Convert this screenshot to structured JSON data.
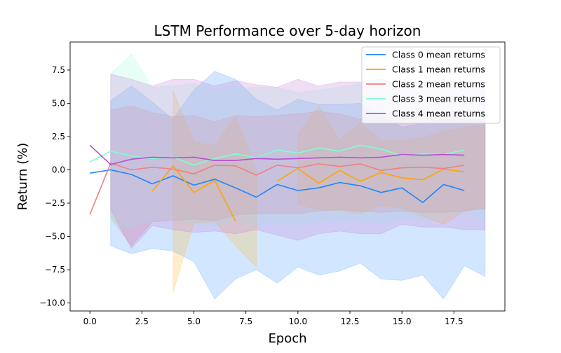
{
  "chart_data": {
    "type": "line",
    "title": "LSTM Performance over 5-day horizon",
    "xlabel": "Epoch",
    "ylabel": "Return (%)",
    "xlim": [
      -0.95,
      19.95
    ],
    "ylim": [
      -10.6,
      9.6
    ],
    "xticks": [
      0.0,
      2.5,
      5.0,
      7.5,
      10.0,
      12.5,
      15.0,
      17.5
    ],
    "xtick_labels": [
      "0.0",
      "2.5",
      "5.0",
      "7.5",
      "10.0",
      "12.5",
      "15.0",
      "17.5"
    ],
    "yticks": [
      -10.0,
      -7.5,
      -5.0,
      -2.5,
      0.0,
      2.5,
      5.0,
      7.5
    ],
    "ytick_labels": [
      "−10.0",
      "−7.5",
      "−5.0",
      "−2.5",
      "0.0",
      "2.5",
      "5.0",
      "7.5"
    ],
    "grid": false,
    "legend_position": "top-right",
    "series": [
      {
        "name": "Class 0 mean returns",
        "color": "#1f85ff",
        "fill_color": "#4d9fff",
        "x": [
          0,
          1,
          2,
          3,
          4,
          5,
          6,
          7,
          8,
          9,
          10,
          11,
          12,
          13,
          14,
          15,
          16,
          17,
          18
        ],
        "mean": [
          -0.25,
          0.0,
          -0.35,
          -1.05,
          -0.45,
          -1.15,
          -0.7,
          -1.35,
          -2.05,
          -1.1,
          -1.55,
          -1.35,
          -0.95,
          -1.2,
          -1.7,
          -1.35,
          -2.45,
          -1.1,
          -1.55
        ],
        "band_x": [
          1,
          2,
          3,
          4,
          5,
          6,
          7,
          8,
          9,
          10,
          11,
          12,
          13,
          14,
          15,
          16,
          17,
          18,
          19
        ],
        "band_lower": [
          -5.7,
          -6.3,
          -5.9,
          -6.1,
          -6.9,
          -9.7,
          -8.2,
          -7.5,
          -8.5,
          -7.3,
          -7.9,
          -7.6,
          -7.0,
          -8.2,
          -8.3,
          -7.9,
          -9.7,
          -7.2,
          -8.0
        ],
        "band_upper": [
          5.2,
          6.3,
          5.1,
          3.8,
          6.0,
          7.4,
          6.8,
          5.3,
          4.5,
          5.3,
          4.9,
          4.9,
          5.0,
          4.1,
          3.2,
          3.5,
          3.8,
          3.8,
          3.8
        ]
      },
      {
        "name": "Class 1 mean returns",
        "color": "#ffa500",
        "fill_color": "#ffb833",
        "x": [
          3,
          4,
          5,
          6,
          7,
          null,
          9,
          10,
          11,
          12,
          13,
          14,
          15,
          16,
          17,
          18
        ],
        "mean": [
          -1.6,
          0.3,
          -1.7,
          -0.8,
          -3.85,
          null,
          -0.85,
          0.1,
          -1.0,
          -0.05,
          -0.85,
          -0.2,
          -0.6,
          -0.75,
          0.05,
          -0.15
        ],
        "band_x": [
          4,
          5,
          6,
          7,
          8,
          null,
          10,
          11,
          12,
          13,
          14,
          15,
          16,
          17,
          18,
          19
        ],
        "band_lower": [
          -9.2,
          -4.0,
          -3.9,
          -5.7,
          -7.3,
          null,
          -2.6,
          -3.0,
          -3.1,
          -3.3,
          -2.7,
          -2.9,
          -3.5,
          -4.1,
          -3.1,
          -2.9
        ],
        "band_upper": [
          6.0,
          2.1,
          1.8,
          4.0,
          0.0,
          null,
          2.7,
          4.8,
          2.3,
          3.5,
          2.2,
          2.2,
          2.4,
          2.9,
          3.2,
          3.4
        ]
      },
      {
        "name": "Class 2 mean returns",
        "color": "#f08080",
        "fill_color": "#e37f7f",
        "x": [
          0,
          1,
          2,
          3,
          4,
          5,
          6,
          7,
          8,
          9,
          10,
          11,
          12,
          13,
          14,
          15,
          16,
          17,
          18
        ],
        "mean": [
          -3.35,
          0.5,
          0.0,
          0.2,
          0.05,
          -0.3,
          0.35,
          0.3,
          -0.4,
          0.35,
          0.15,
          0.45,
          0.25,
          0.45,
          -0.05,
          0.15,
          0.2,
          0.1,
          0.35
        ],
        "band_x": [
          1,
          2,
          3,
          4,
          5,
          6,
          7,
          8,
          9,
          10,
          11,
          12,
          13,
          14,
          15,
          16,
          17,
          18,
          19
        ],
        "band_lower": [
          -3.6,
          -5.7,
          -3.9,
          -3.8,
          -3.7,
          -3.8,
          -3.4,
          -3.3,
          -3.3,
          -3.3,
          -3.1,
          -3.0,
          -3.1,
          -3.2,
          -3.1,
          -3.2,
          -3.2,
          -3.1,
          -2.9
        ],
        "band_upper": [
          4.5,
          4.8,
          4.3,
          4.0,
          4.1,
          3.6,
          4.1,
          4.0,
          4.1,
          4.2,
          4.4,
          4.2,
          3.8,
          4.2,
          4.2,
          4.4,
          4.4,
          3.7,
          3.6
        ]
      },
      {
        "name": "Class 3 mean returns",
        "color": "#7fffd4",
        "fill_color": "#9ffce0",
        "x": [
          0,
          1,
          2,
          3,
          4,
          5,
          6,
          7,
          8,
          9,
          10,
          11,
          12,
          13,
          14,
          15,
          16,
          17,
          18
        ],
        "mean": [
          0.6,
          1.4,
          1.05,
          0.85,
          0.95,
          0.35,
          0.85,
          1.2,
          0.9,
          1.5,
          1.25,
          1.65,
          1.4,
          1.85,
          1.55,
          1.05,
          1.2,
          1.15,
          1.5
        ],
        "band_x": [
          1,
          2,
          3,
          4,
          5,
          6,
          7,
          8,
          9,
          10,
          11,
          12,
          13,
          14,
          15,
          16,
          17,
          18,
          19
        ],
        "band_lower": [
          -4.2,
          -4.3,
          -3.8,
          -3.8,
          -4.0,
          -4.3,
          -3.7,
          -4.2,
          -4.0,
          -4.2,
          -3.8,
          -3.9,
          -3.9,
          -4.0,
          -3.6,
          -3.7,
          -3.4,
          -3.2,
          -3.8
        ],
        "band_upper": [
          7.2,
          8.7,
          6.2,
          6.3,
          6.5,
          6.0,
          6.1,
          6.2,
          6.2,
          5.8,
          6.0,
          6.2,
          6.5,
          6.9,
          6.1,
          6.4,
          6.5,
          6.0,
          6.2
        ]
      },
      {
        "name": "Class 4 mean returns",
        "color": "#b84fd1",
        "fill_color": "#c57ad8",
        "x": [
          0,
          1,
          2,
          3,
          4,
          5,
          6,
          7,
          8,
          9,
          10,
          11,
          12,
          13,
          14,
          15,
          16,
          17,
          18
        ],
        "mean": [
          1.85,
          0.4,
          0.8,
          0.95,
          0.9,
          0.95,
          0.7,
          0.7,
          0.85,
          0.8,
          0.85,
          0.9,
          0.95,
          0.9,
          0.95,
          1.15,
          1.1,
          1.15,
          1.1
        ],
        "band_x": [
          1,
          2,
          3,
          4,
          5,
          6,
          7,
          8,
          9,
          10,
          11,
          12,
          13,
          14,
          15,
          16,
          17,
          18,
          19
        ],
        "band_lower": [
          -3.0,
          -5.9,
          -4.2,
          -4.5,
          -4.7,
          -4.6,
          -4.8,
          -4.5,
          -4.9,
          -5.3,
          -4.8,
          -4.6,
          -4.8,
          -4.8,
          -4.1,
          -4.3,
          -4.3,
          -4.5,
          -4.5
        ],
        "band_upper": [
          7.2,
          6.8,
          6.3,
          6.8,
          6.8,
          6.3,
          6.7,
          6.4,
          6.2,
          6.8,
          6.3,
          6.6,
          6.6,
          6.8,
          6.5,
          6.6,
          6.8,
          6.5,
          6.6
        ]
      }
    ]
  }
}
